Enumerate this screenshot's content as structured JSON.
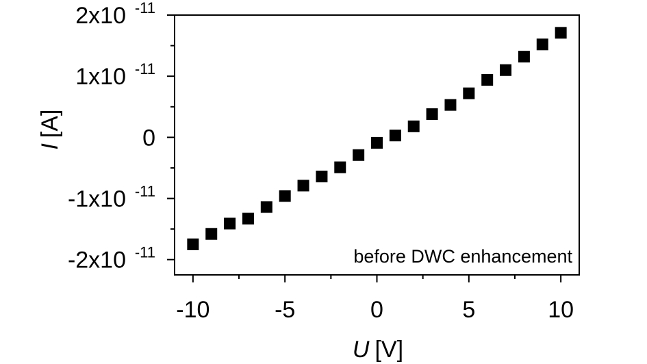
{
  "chart_data": {
    "type": "scatter",
    "title": "",
    "xlabel": {
      "symbol": "U",
      "unit": "[V]"
    },
    "ylabel": {
      "symbol": "I",
      "unit": "[A]"
    },
    "xlim": [
      -11,
      11
    ],
    "ylim": [
      -2.25e-11,
      2e-11
    ],
    "xticks": [
      {
        "value": -10,
        "label": "-10"
      },
      {
        "value": -5,
        "label": "-5"
      },
      {
        "value": 0,
        "label": "0"
      },
      {
        "value": 5,
        "label": "5"
      },
      {
        "value": 10,
        "label": "10"
      }
    ],
    "yticks": [
      {
        "value": -2e-11,
        "mant": "-2x10",
        "exp": "-11"
      },
      {
        "value": -1e-11,
        "mant": "-1x10",
        "exp": "-11"
      },
      {
        "value": 0,
        "mant": "0",
        "exp": ""
      },
      {
        "value": 1e-11,
        "mant": "1x10",
        "exp": "-11"
      },
      {
        "value": 2e-11,
        "mant": "2x10",
        "exp": "-11"
      }
    ],
    "annotation": "before DWC enhancement",
    "marker": "square",
    "color": "#000000",
    "grid": false,
    "series": [
      {
        "x": [
          -10,
          -9,
          -8,
          -7,
          -6,
          -5,
          -4,
          -3,
          -2,
          -1,
          0,
          1,
          2,
          3,
          4,
          5,
          6,
          7,
          8,
          9,
          10
        ],
        "y": [
          -1.75e-11,
          -1.58e-11,
          -1.41e-11,
          -1.33e-11,
          -1.14e-11,
          -9.6e-12,
          -7.9e-12,
          -6.4e-12,
          -4.9e-12,
          -2.9e-12,
          -9e-13,
          3e-13,
          1.8e-12,
          3.8e-12,
          5.3e-12,
          7.2e-12,
          9.4e-12,
          1.1e-11,
          1.32e-11,
          1.52e-11,
          1.71e-11
        ]
      }
    ]
  }
}
